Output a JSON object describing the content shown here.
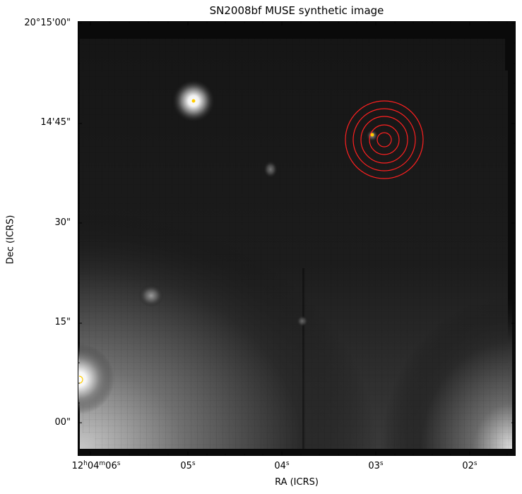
{
  "figure": {
    "title": "SN2008bf MUSE synthetic image",
    "xlabel": "RA (ICRS)",
    "ylabel": "Dec (ICRS)"
  },
  "y_ticks": [
    "20°15'00\"",
    "14'45\"",
    "30\"",
    "15\"",
    "00\""
  ],
  "x_ticks": [
    {
      "h": "12",
      "m": "04",
      "s": "06",
      "full": true
    },
    {
      "s": "05"
    },
    {
      "s": "04"
    },
    {
      "s": "03"
    },
    {
      "s": "02"
    }
  ],
  "colors": {
    "circles": "#ff2020",
    "markers": "#ffcc00",
    "image_background": "#0a0a0a"
  },
  "overlays": {
    "concentric_circle_count": 5,
    "marker_count": 3
  }
}
